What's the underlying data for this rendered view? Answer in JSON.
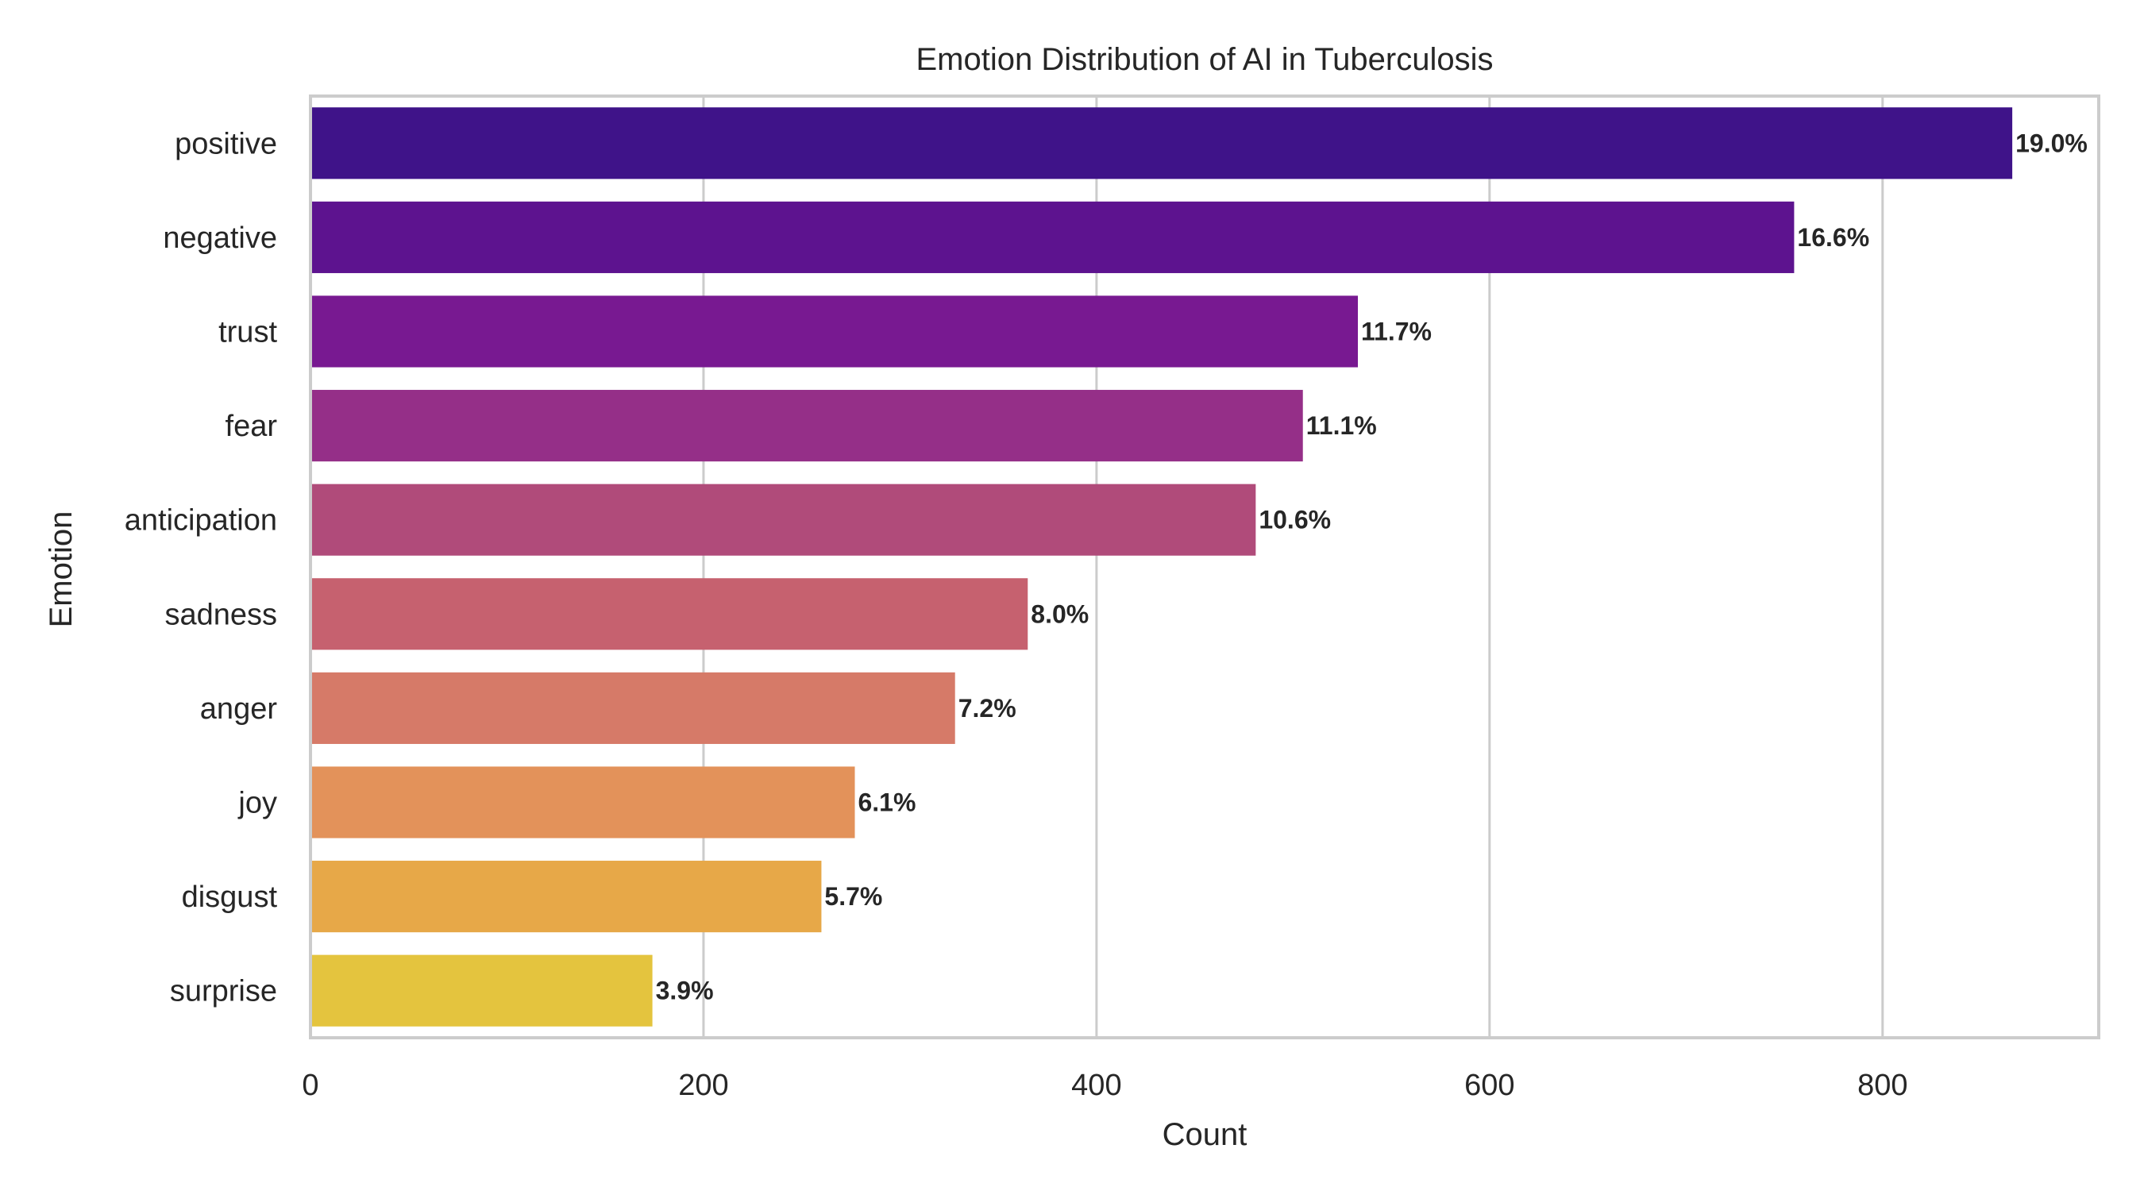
{
  "chart_data": {
    "type": "bar",
    "orientation": "horizontal",
    "title": "Emotion Distribution of AI in Tuberculosis",
    "xlabel": "Count",
    "ylabel": "Emotion",
    "categories": [
      "positive",
      "negative",
      "trust",
      "fear",
      "anticipation",
      "sadness",
      "anger",
      "joy",
      "disgust",
      "surprise"
    ],
    "values": [
      866,
      755,
      533,
      505,
      481,
      365,
      328,
      277,
      260,
      174
    ],
    "percent_labels": [
      "19.0%",
      "16.6%",
      "11.7%",
      "11.1%",
      "10.6%",
      "8.0%",
      "7.2%",
      "6.1%",
      "5.7%",
      "3.9%"
    ],
    "colors": [
      "#3f1389",
      "#5d138f",
      "#781991",
      "#952f88",
      "#b04b7a",
      "#c6616f",
      "#d67a68",
      "#e3925a",
      "#e7a848",
      "#e4c43e"
    ],
    "xticks": [
      "0",
      "200",
      "400",
      "600",
      "800"
    ],
    "xlim": [
      0,
      910
    ],
    "grid": "vertical"
  }
}
